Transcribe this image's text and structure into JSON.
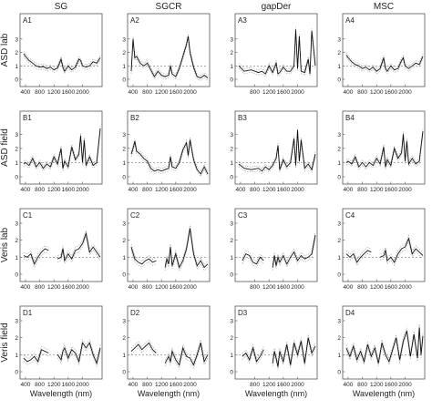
{
  "chart_data": {
    "type": "line",
    "columns": [
      "SG",
      "SGCR",
      "gapDer",
      "MSC"
    ],
    "rows": [
      "ASD lab",
      "ASD field",
      "Veris lab",
      "Veris field"
    ],
    "xlabel": "Wavelength (nm)",
    "reference_line": 1,
    "xlim": [
      350,
      2500
    ],
    "panels": [
      {
        "id": "A1",
        "xticks": [
          400,
          800,
          1200,
          1600,
          2000
        ],
        "yticks": [
          0,
          1,
          2,
          3
        ],
        "ylim": [
          0,
          3.8
        ],
        "x": [
          350,
          400,
          500,
          600,
          700,
          800,
          900,
          1000,
          1100,
          1200,
          1300,
          1400,
          1450,
          1500,
          1600,
          1700,
          1800,
          1900,
          1950,
          2000,
          2100,
          2200,
          2300,
          2400,
          2500
        ],
        "y": [
          1.9,
          1.7,
          1.4,
          1.2,
          1.0,
          0.9,
          0.95,
          0.8,
          0.9,
          0.7,
          0.85,
          1.5,
          0.9,
          0.6,
          1.0,
          0.7,
          0.9,
          1.5,
          1.4,
          1.0,
          0.9,
          1.0,
          1.3,
          1.2,
          1.6
        ]
      },
      {
        "id": "A2",
        "xticks": [
          400,
          800,
          1200,
          1600,
          2000
        ],
        "yticks": [
          0,
          1,
          2,
          3
        ],
        "ylim": [
          0,
          3.8
        ],
        "x": [
          350,
          400,
          450,
          500,
          600,
          700,
          800,
          900,
          1000,
          1100,
          1200,
          1300,
          1400,
          1450,
          1500,
          1600,
          1700,
          1800,
          1900,
          1950,
          2000,
          2100,
          2200,
          2300,
          2400,
          2500
        ],
        "y": [
          0.6,
          3.0,
          1.6,
          1.7,
          1.2,
          1.0,
          1.2,
          0.7,
          0.2,
          0.6,
          0.3,
          0.2,
          0.3,
          1.0,
          0.4,
          0.2,
          0.8,
          1.7,
          2.6,
          3.2,
          2.0,
          0.9,
          0.2,
          0.1,
          0.3,
          0.1
        ]
      },
      {
        "id": "A3",
        "xticks": [
          800,
          1200,
          1600,
          2000
        ],
        "yticks": [
          0,
          1,
          2,
          3
        ],
        "ylim": [
          0,
          3.8
        ],
        "x": [
          350,
          500,
          700,
          900,
          1000,
          1100,
          1200,
          1300,
          1400,
          1450,
          1500,
          1600,
          1700,
          1800,
          1900,
          1950,
          2000,
          2050,
          2100,
          2200,
          2300,
          2350,
          2400,
          2500
        ],
        "y": [
          1.0,
          0.6,
          0.7,
          0.5,
          0.6,
          0.4,
          1.0,
          0.5,
          1.2,
          0.4,
          0.5,
          0.9,
          0.6,
          0.6,
          1.0,
          3.7,
          0.8,
          3.2,
          0.6,
          0.5,
          1.5,
          0.4,
          3.6,
          1.0
        ]
      },
      {
        "id": "A4",
        "xticks": [
          400,
          800,
          1200,
          1600,
          2000
        ],
        "yticks": [
          0,
          1,
          2,
          3
        ],
        "ylim": [
          0,
          3.8
        ],
        "x": [
          350,
          400,
          500,
          600,
          700,
          800,
          900,
          1000,
          1100,
          1200,
          1300,
          1400,
          1450,
          1500,
          1600,
          1700,
          1800,
          1900,
          1950,
          2000,
          2100,
          2200,
          2300,
          2400,
          2500
        ],
        "y": [
          1.8,
          1.6,
          1.3,
          1.1,
          1.0,
          0.8,
          0.9,
          0.7,
          0.9,
          0.6,
          0.8,
          1.6,
          0.8,
          0.6,
          1.0,
          0.7,
          0.8,
          1.4,
          1.6,
          1.0,
          0.8,
          1.0,
          1.2,
          1.1,
          1.7
        ]
      },
      {
        "id": "B1",
        "xticks": [
          400,
          800,
          1200,
          1600,
          2000
        ],
        "yticks": [
          0,
          1,
          2,
          3
        ],
        "ylim": [
          0,
          3.6
        ],
        "x": [
          350,
          400,
          500,
          600,
          700,
          800,
          900,
          1000,
          1100,
          1200,
          1300,
          1400,
          1450,
          1500,
          1600,
          1700,
          1800,
          1900,
          1950,
          2000,
          2050,
          2100,
          2200,
          2300,
          2400,
          2500
        ],
        "y": [
          0.9,
          1.0,
          0.8,
          1.3,
          0.7,
          1.0,
          0.6,
          0.9,
          0.7,
          1.4,
          0.9,
          2.0,
          0.6,
          1.1,
          0.7,
          2.1,
          1.2,
          1.6,
          2.9,
          1.0,
          2.6,
          0.8,
          1.4,
          0.8,
          1.0,
          3.4
        ]
      },
      {
        "id": "B2",
        "xticks": [
          400,
          800,
          1200,
          1600,
          2000
        ],
        "yticks": [
          0,
          1,
          2,
          3
        ],
        "ylim": [
          0,
          3.6
        ],
        "x": [
          350,
          400,
          450,
          500,
          600,
          700,
          800,
          900,
          1000,
          1100,
          1200,
          1300,
          1400,
          1450,
          1500,
          1600,
          1700,
          1800,
          1900,
          1950,
          2000,
          2100,
          2200,
          2300,
          2400,
          2500
        ],
        "y": [
          1.6,
          2.0,
          2.5,
          1.8,
          1.6,
          1.3,
          1.1,
          0.6,
          0.4,
          0.5,
          0.4,
          0.5,
          0.6,
          1.4,
          0.7,
          0.6,
          1.0,
          1.9,
          2.4,
          1.5,
          2.6,
          1.2,
          0.5,
          0.2,
          0.7,
          0.2
        ]
      },
      {
        "id": "B3",
        "xticks": [
          400,
          800,
          1200,
          1600,
          2000
        ],
        "yticks": [
          0,
          1,
          2,
          3
        ],
        "ylim": [
          0,
          3.6
        ],
        "x": [
          350,
          500,
          700,
          900,
          1000,
          1100,
          1200,
          1300,
          1400,
          1450,
          1500,
          1600,
          1700,
          1800,
          1900,
          1950,
          2000,
          2050,
          2100,
          2200,
          2300,
          2400,
          2500
        ],
        "y": [
          0.9,
          0.6,
          0.5,
          0.6,
          0.4,
          0.7,
          0.5,
          0.8,
          1.3,
          2.2,
          0.5,
          1.2,
          0.7,
          1.0,
          2.7,
          0.8,
          3.3,
          1.1,
          2.6,
          0.6,
          0.9,
          0.5,
          1.6
        ]
      },
      {
        "id": "B4",
        "xticks": [
          400,
          800,
          1200,
          1600,
          2000
        ],
        "yticks": [
          0,
          1,
          2,
          3
        ],
        "ylim": [
          0,
          3.6
        ],
        "x": [
          350,
          400,
          500,
          600,
          700,
          800,
          900,
          1000,
          1100,
          1200,
          1300,
          1400,
          1450,
          1500,
          1600,
          1700,
          1800,
          1900,
          1950,
          2000,
          2050,
          2100,
          2200,
          2300,
          2400,
          2500
        ],
        "y": [
          1.0,
          1.1,
          0.9,
          1.4,
          0.7,
          1.0,
          0.7,
          1.0,
          0.8,
          1.3,
          0.9,
          2.1,
          0.7,
          1.2,
          0.8,
          2.0,
          1.3,
          1.7,
          3.0,
          1.1,
          2.5,
          0.9,
          1.3,
          0.9,
          1.1,
          3.2
        ]
      },
      {
        "id": "C1",
        "xticks": [
          400,
          800,
          1200,
          1600,
          2000
        ],
        "yticks": [
          0,
          1,
          2,
          3
        ],
        "ylim": [
          0,
          3.0
        ],
        "x": [
          350,
          450,
          550,
          650,
          750,
          850,
          950,
          1050,
          null,
          1300,
          1400,
          1450,
          1500,
          1600,
          1700,
          1800,
          1900,
          2000,
          2100,
          2200,
          2300,
          2400,
          2500
        ],
        "y": [
          1.1,
          1.0,
          1.2,
          0.6,
          1.0,
          1.3,
          1.5,
          1.4,
          null,
          0.9,
          1.0,
          1.5,
          0.8,
          1.2,
          0.9,
          1.4,
          1.5,
          1.8,
          2.4,
          1.3,
          1.6,
          1.3,
          1.0
        ]
      },
      {
        "id": "C2",
        "xticks": [
          400,
          800,
          1200,
          1600,
          2000
        ],
        "yticks": [
          0,
          1,
          2,
          3
        ],
        "ylim": [
          0,
          3.0
        ],
        "x": [
          350,
          450,
          550,
          650,
          750,
          850,
          950,
          1050,
          null,
          1300,
          1350,
          1400,
          1450,
          1500,
          1600,
          1700,
          1800,
          1900,
          2000,
          2100,
          2200,
          2300,
          2400,
          2500
        ],
        "y": [
          1.6,
          0.9,
          0.7,
          0.6,
          0.8,
          0.9,
          0.7,
          0.8,
          null,
          0.4,
          0.9,
          0.6,
          1.6,
          0.5,
          1.2,
          0.4,
          0.8,
          1.5,
          2.7,
          1.2,
          0.5,
          0.8,
          0.4,
          0.6
        ]
      },
      {
        "id": "C3",
        "xticks": [
          800,
          1200,
          1600,
          2000
        ],
        "yticks": [
          0,
          1,
          2,
          3
        ],
        "ylim": [
          0,
          3.0
        ],
        "x": [
          450,
          550,
          650,
          750,
          850,
          950,
          1050,
          null,
          1300,
          1350,
          1400,
          1450,
          1500,
          1600,
          1700,
          1800,
          1900,
          2000,
          2100,
          2200,
          2300,
          2400,
          2500
        ],
        "y": [
          0.8,
          1.2,
          1.1,
          0.7,
          0.6,
          1.0,
          0.8,
          null,
          0.4,
          1.1,
          0.5,
          1.0,
          0.7,
          1.1,
          0.6,
          1.0,
          1.3,
          0.8,
          1.1,
          0.9,
          1.0,
          1.2,
          2.3
        ]
      },
      {
        "id": "C4",
        "xticks": [
          400,
          800,
          1200,
          1600,
          2000
        ],
        "yticks": [
          0,
          1,
          2,
          3
        ],
        "ylim": [
          0,
          3.0
        ],
        "x": [
          350,
          450,
          550,
          650,
          750,
          850,
          950,
          1050,
          null,
          1300,
          1400,
          1450,
          1500,
          1600,
          1700,
          1800,
          1900,
          2000,
          2100,
          2200,
          2300,
          2400,
          2500
        ],
        "y": [
          1.2,
          1.0,
          1.2,
          0.7,
          1.0,
          1.2,
          1.4,
          1.3,
          null,
          1.0,
          1.1,
          1.4,
          0.8,
          1.0,
          0.7,
          1.2,
          1.5,
          1.6,
          2.1,
          1.2,
          1.5,
          1.3,
          1.1
        ]
      },
      {
        "id": "D1",
        "xticks": [
          400,
          800,
          1200,
          1600,
          2000
        ],
        "yticks": [
          0,
          1,
          2,
          3
        ],
        "ylim": [
          0,
          3.0
        ],
        "x": [
          350,
          450,
          550,
          650,
          750,
          850,
          950,
          1050,
          null,
          1300,
          1400,
          1450,
          1500,
          1600,
          1700,
          1800,
          1900,
          2000,
          2100,
          2200,
          2300,
          2400,
          2500
        ],
        "y": [
          0.8,
          0.6,
          0.7,
          0.9,
          0.6,
          1.3,
          1.2,
          1.1,
          null,
          1.0,
          0.7,
          1.2,
          1.4,
          0.8,
          1.3,
          1.1,
          0.6,
          1.7,
          1.4,
          1.7,
          1.0,
          0.5,
          1.4
        ]
      },
      {
        "id": "D2",
        "xticks": [
          400,
          800,
          1200,
          1600,
          2000
        ],
        "yticks": [
          0,
          1,
          2,
          3
        ],
        "ylim": [
          0,
          3.0
        ],
        "x": [
          350,
          450,
          550,
          650,
          750,
          850,
          950,
          1050,
          null,
          1300,
          1400,
          1450,
          1500,
          1600,
          1700,
          1800,
          1900,
          2000,
          2100,
          2200,
          2300,
          2400,
          2500
        ],
        "y": [
          1.2,
          1.4,
          1.6,
          1.3,
          1.5,
          1.7,
          1.3,
          1.1,
          null,
          0.5,
          0.9,
          0.6,
          1.2,
          0.7,
          0.4,
          1.4,
          0.9,
          0.8,
          0.4,
          1.0,
          1.7,
          0.6,
          1.0
        ]
      },
      {
        "id": "D3",
        "xticks": [
          800,
          1200,
          1600,
          2000
        ],
        "yticks": [
          0,
          1,
          2,
          3
        ],
        "ylim": [
          0,
          3.0
        ],
        "x": [
          450,
          550,
          650,
          750,
          850,
          950,
          1050,
          null,
          1300,
          1350,
          1400,
          1450,
          1500,
          1600,
          1700,
          1800,
          1900,
          2000,
          2100,
          2200,
          2300,
          2400,
          2500
        ],
        "y": [
          0.9,
          1.1,
          0.7,
          1.4,
          0.6,
          0.9,
          1.3,
          null,
          0.5,
          1.2,
          0.8,
          0.3,
          1.2,
          0.6,
          1.6,
          0.4,
          1.7,
          1.0,
          1.8,
          0.5,
          2.0,
          1.1,
          1.5
        ]
      },
      {
        "id": "D4",
        "xticks": [
          400,
          800,
          1200,
          1600,
          2000
        ],
        "yticks": [
          0,
          1,
          2,
          3
        ],
        "ylim": [
          0,
          3.0
        ],
        "x": [
          350,
          450,
          550,
          650,
          750,
          850,
          950,
          1050,
          1150,
          1250,
          1350,
          1450,
          1550,
          1650,
          1750,
          1850,
          1950,
          2050,
          2150,
          2250,
          2350,
          2400,
          2450,
          2500
        ],
        "y": [
          1.4,
          0.9,
          1.5,
          0.7,
          1.2,
          0.6,
          1.6,
          0.9,
          1.4,
          0.5,
          1.7,
          1.0,
          0.6,
          1.3,
          2.0,
          0.7,
          1.8,
          2.4,
          0.9,
          2.2,
          0.8,
          2.6,
          1.0,
          2.1
        ]
      }
    ]
  }
}
